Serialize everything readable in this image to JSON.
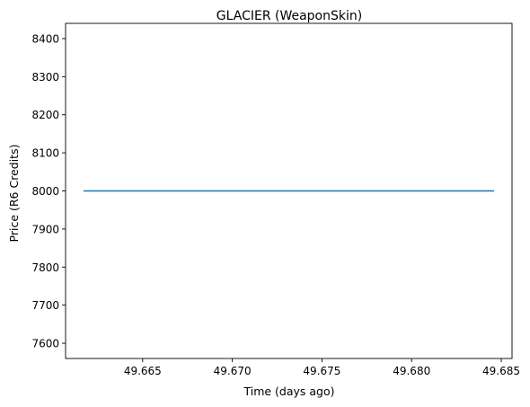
{
  "chart_data": {
    "type": "line",
    "title": "GLACIER (WeaponSkin)",
    "xlabel": "Time (days ago)",
    "ylabel": "Price (R6 Credits)",
    "xlim": [
      49.6607,
      49.6856
    ],
    "ylim": [
      7560,
      8440
    ],
    "xticks": [
      49.665,
      49.67,
      49.675,
      49.68,
      49.685
    ],
    "xtick_labels": [
      "49.665",
      "49.670",
      "49.675",
      "49.680",
      "49.685"
    ],
    "yticks": [
      7600,
      7700,
      7800,
      7900,
      8000,
      8100,
      8200,
      8300,
      8400
    ],
    "ytick_labels": [
      "7600",
      "7700",
      "7800",
      "7900",
      "8000",
      "8100",
      "8200",
      "8300",
      "8400"
    ],
    "grid": false,
    "series": [
      {
        "color": "#1f77b4",
        "x": [
          49.6617,
          49.6846
        ],
        "y": [
          8000,
          8000
        ]
      }
    ]
  }
}
